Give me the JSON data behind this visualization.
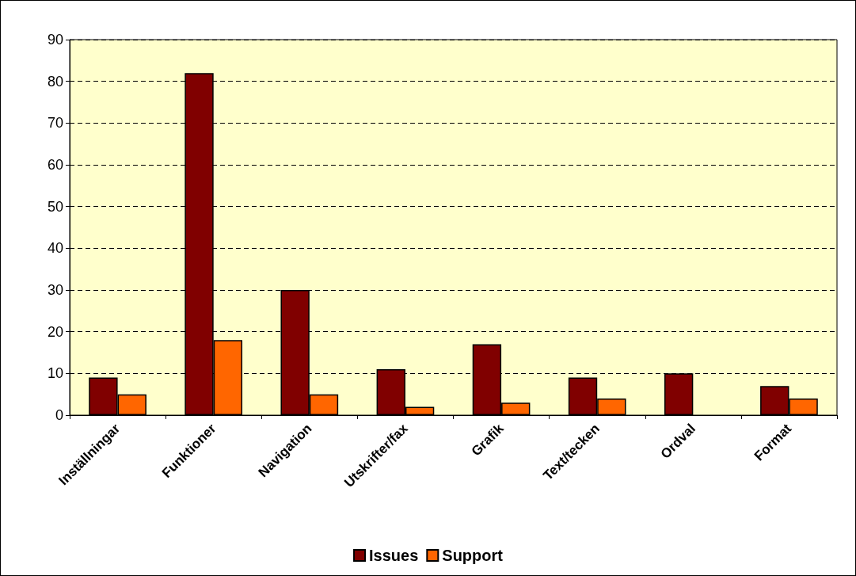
{
  "chart_data": {
    "type": "bar",
    "categories": [
      "Inställningar",
      "Funktioner",
      "Navigation",
      "Utskrifter/fax",
      "Grafik",
      "Text/tecken",
      "Ordval",
      "Format"
    ],
    "series": [
      {
        "name": "Issues",
        "color": "#800000",
        "values": [
          9,
          82,
          30,
          11,
          17,
          9,
          10,
          7
        ]
      },
      {
        "name": "Support",
        "color": "#ff6600",
        "values": [
          5,
          18,
          5,
          2,
          3,
          4,
          null,
          4
        ]
      }
    ],
    "ylim": [
      0,
      90
    ],
    "yticks": [
      0,
      10,
      20,
      30,
      40,
      50,
      60,
      70,
      80,
      90
    ],
    "grid": "y",
    "legend": "bottom"
  }
}
